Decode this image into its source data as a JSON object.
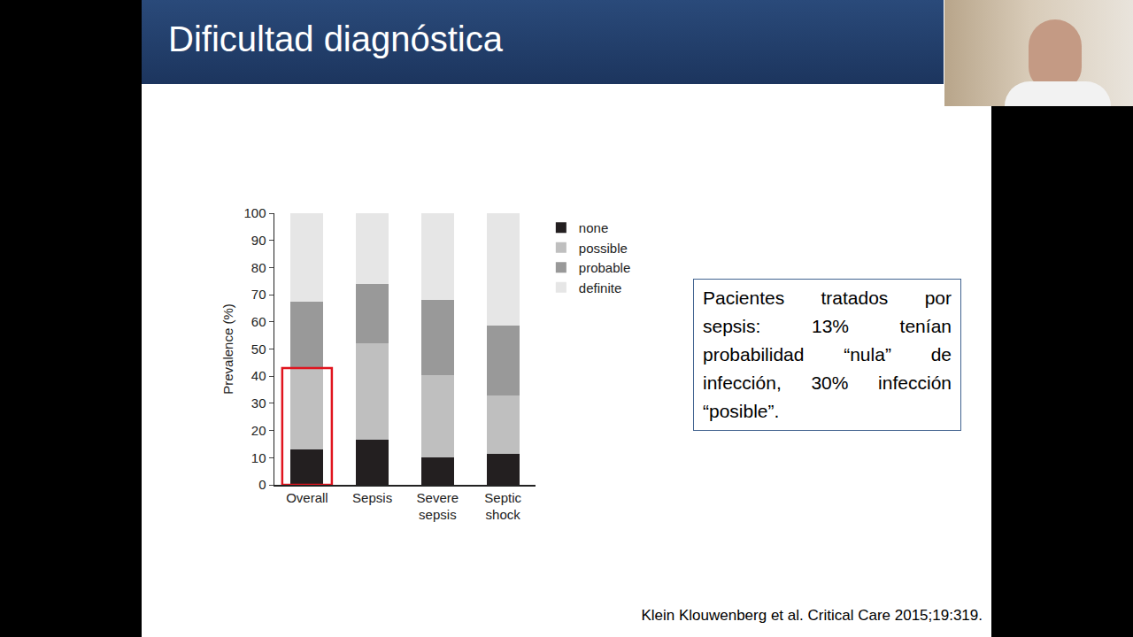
{
  "title": "Dificultad diagnóstica",
  "chart_data": {
    "type": "bar",
    "stacked": true,
    "ylabel": "Prevalence (%)",
    "categories": [
      "Overall",
      "Sepsis",
      "Severe sepsis",
      "Septic shock"
    ],
    "series": [
      {
        "name": "none",
        "color": "#231f20",
        "values": [
          13,
          16.5,
          10,
          11.5
        ]
      },
      {
        "name": "possible",
        "color": "#bfbfbf",
        "values": [
          30,
          35.5,
          30.5,
          21.5
        ]
      },
      {
        "name": "probable",
        "color": "#999999",
        "values": [
          24.5,
          22,
          27.5,
          25.5
        ]
      },
      {
        "name": "definite",
        "color": "#e6e6e6",
        "values": [
          32.5,
          26,
          32,
          41.5
        ]
      }
    ],
    "ylim": [
      0,
      100
    ],
    "yticks": [
      0,
      10,
      20,
      30,
      40,
      50,
      60,
      70,
      80,
      90,
      100
    ],
    "grid": false,
    "legend": "top right"
  },
  "annotations": [
    "Pacientes tratados por sepsis: 13% tenían probabilidad “nula” de infección, 30% infección “posible”.",
    "Klein Klouwenberg et al. Critical Care 2015;19:319."
  ]
}
